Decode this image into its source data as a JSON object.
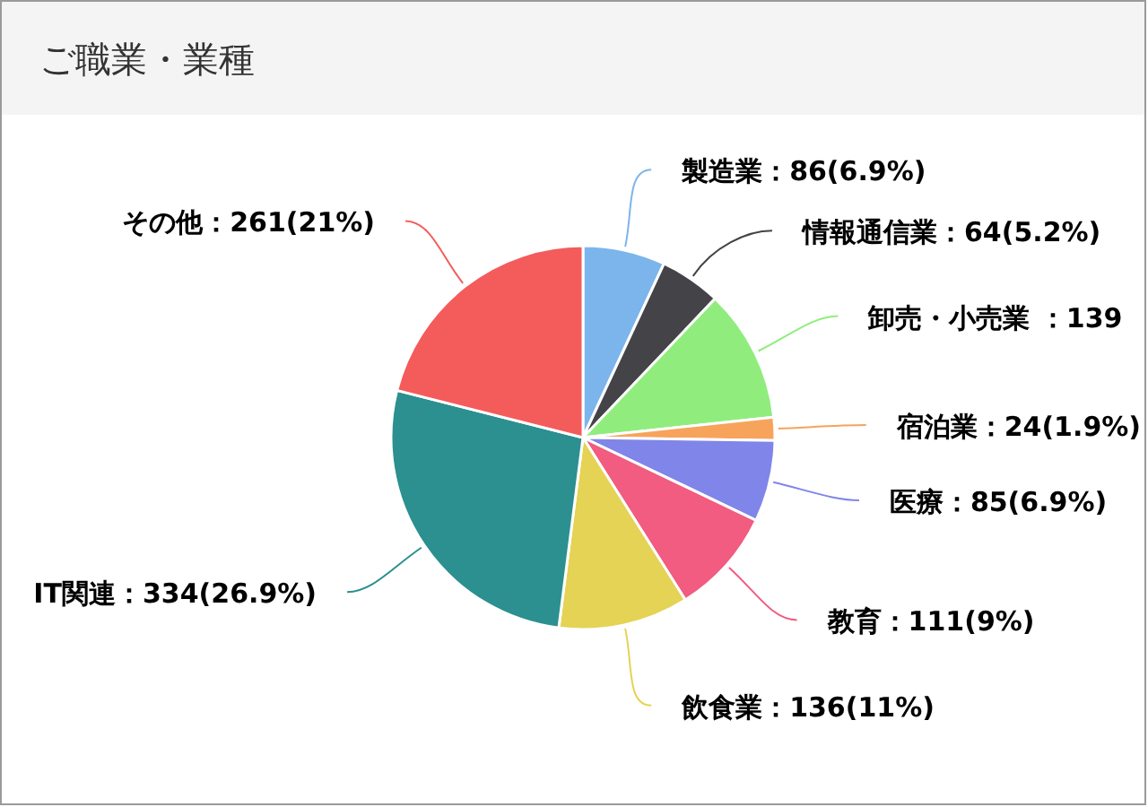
{
  "chart_data": {
    "type": "pie",
    "title": "ご職業・業種",
    "categories": [
      "製造業",
      "情報通信業",
      "卸売・小売業",
      "宿泊業",
      "医療",
      "教育",
      "飲食業",
      "IT関連",
      "その他"
    ],
    "values": [
      86,
      64,
      139,
      24,
      85,
      111,
      136,
      334,
      261
    ],
    "colors": [
      "#7cb5ec",
      "#434348",
      "#90ed7d",
      "#f7a35c",
      "#8085e9",
      "#f15c80",
      "#e4d354",
      "#2b908f",
      "#f45b5b"
    ],
    "value_labels": [
      "：86(6.9%)",
      "：64(5.2%)",
      " ：139",
      "：24(1.9%)",
      "：85(6.9%)",
      "：111(9%)",
      "：136(11%)",
      "：334(26.9%)",
      "：261(21%)"
    ]
  }
}
